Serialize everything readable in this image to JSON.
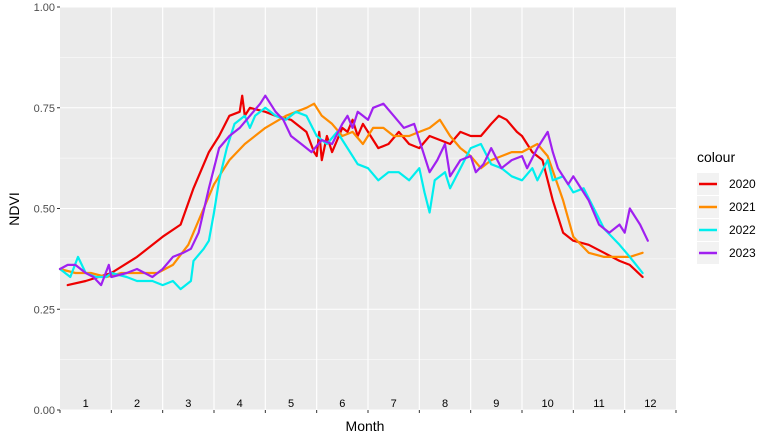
{
  "chart_data": {
    "type": "line",
    "title": "",
    "xlabel": "Month",
    "ylabel": "NDVI",
    "xlim": [
      1,
      13
    ],
    "ylim": [
      0,
      1
    ],
    "y_ticks": [
      "0.00",
      "0.25",
      "0.50",
      "0.75",
      "1.00"
    ],
    "x_tick_labels": [
      "1",
      "2",
      "3",
      "4",
      "5",
      "6",
      "7",
      "8",
      "9",
      "10",
      "11",
      "12"
    ],
    "grid": true,
    "legend_title": "colour",
    "legend_position": "right",
    "series": [
      {
        "name": "2020",
        "color": "#EE0000",
        "points": [
          [
            1.15,
            0.31
          ],
          [
            1.5,
            0.32
          ],
          [
            2.0,
            0.34
          ],
          [
            2.5,
            0.38
          ],
          [
            3.0,
            0.43
          ],
          [
            3.35,
            0.46
          ],
          [
            3.6,
            0.55
          ],
          [
            3.9,
            0.64
          ],
          [
            4.1,
            0.68
          ],
          [
            4.3,
            0.73
          ],
          [
            4.5,
            0.74
          ],
          [
            4.55,
            0.78
          ],
          [
            4.6,
            0.73
          ],
          [
            4.7,
            0.75
          ],
          [
            5.0,
            0.74
          ],
          [
            5.2,
            0.73
          ],
          [
            5.5,
            0.72
          ],
          [
            5.8,
            0.69
          ],
          [
            5.95,
            0.64
          ],
          [
            6.0,
            0.63
          ],
          [
            6.05,
            0.69
          ],
          [
            6.1,
            0.62
          ],
          [
            6.2,
            0.68
          ],
          [
            6.3,
            0.64
          ],
          [
            6.4,
            0.67
          ],
          [
            6.5,
            0.7
          ],
          [
            6.6,
            0.69
          ],
          [
            6.7,
            0.72
          ],
          [
            6.8,
            0.68
          ],
          [
            6.9,
            0.71
          ],
          [
            7.0,
            0.69
          ],
          [
            7.2,
            0.65
          ],
          [
            7.4,
            0.66
          ],
          [
            7.6,
            0.69
          ],
          [
            7.8,
            0.66
          ],
          [
            8.0,
            0.65
          ],
          [
            8.2,
            0.68
          ],
          [
            8.4,
            0.67
          ],
          [
            8.6,
            0.66
          ],
          [
            8.8,
            0.69
          ],
          [
            9.0,
            0.68
          ],
          [
            9.2,
            0.68
          ],
          [
            9.4,
            0.71
          ],
          [
            9.55,
            0.73
          ],
          [
            9.7,
            0.72
          ],
          [
            9.9,
            0.69
          ],
          [
            10.0,
            0.68
          ],
          [
            10.2,
            0.64
          ],
          [
            10.4,
            0.62
          ],
          [
            10.6,
            0.52
          ],
          [
            10.8,
            0.44
          ],
          [
            11.0,
            0.42
          ],
          [
            11.3,
            0.41
          ],
          [
            11.6,
            0.39
          ],
          [
            11.9,
            0.37
          ],
          [
            12.1,
            0.36
          ],
          [
            12.35,
            0.33
          ]
        ]
      },
      {
        "name": "2021",
        "color": "#FF8C00",
        "points": [
          [
            1.0,
            0.35
          ],
          [
            1.3,
            0.34
          ],
          [
            1.6,
            0.34
          ],
          [
            1.9,
            0.33
          ],
          [
            2.2,
            0.34
          ],
          [
            2.6,
            0.34
          ],
          [
            2.9,
            0.34
          ],
          [
            3.2,
            0.36
          ],
          [
            3.5,
            0.41
          ],
          [
            3.8,
            0.5
          ],
          [
            4.0,
            0.56
          ],
          [
            4.3,
            0.62
          ],
          [
            4.6,
            0.66
          ],
          [
            5.0,
            0.7
          ],
          [
            5.4,
            0.73
          ],
          [
            5.8,
            0.75
          ],
          [
            5.95,
            0.76
          ],
          [
            6.1,
            0.73
          ],
          [
            6.3,
            0.71
          ],
          [
            6.5,
            0.68
          ],
          [
            6.7,
            0.69
          ],
          [
            6.9,
            0.66
          ],
          [
            7.1,
            0.7
          ],
          [
            7.3,
            0.7
          ],
          [
            7.5,
            0.68
          ],
          [
            7.8,
            0.68
          ],
          [
            8.0,
            0.69
          ],
          [
            8.2,
            0.7
          ],
          [
            8.4,
            0.72
          ],
          [
            8.6,
            0.68
          ],
          [
            8.8,
            0.65
          ],
          [
            9.0,
            0.63
          ],
          [
            9.2,
            0.6
          ],
          [
            9.4,
            0.62
          ],
          [
            9.6,
            0.63
          ],
          [
            9.8,
            0.64
          ],
          [
            10.0,
            0.64
          ],
          [
            10.3,
            0.66
          ],
          [
            10.5,
            0.63
          ],
          [
            10.8,
            0.52
          ],
          [
            11.0,
            0.43
          ],
          [
            11.3,
            0.39
          ],
          [
            11.6,
            0.38
          ],
          [
            11.9,
            0.38
          ],
          [
            12.1,
            0.38
          ],
          [
            12.35,
            0.39
          ]
        ]
      },
      {
        "name": "2022",
        "color": "#00EEEE",
        "points": [
          [
            1.0,
            0.35
          ],
          [
            1.2,
            0.33
          ],
          [
            1.35,
            0.38
          ],
          [
            1.5,
            0.34
          ],
          [
            1.7,
            0.33
          ],
          [
            1.9,
            0.33
          ],
          [
            2.0,
            0.34
          ],
          [
            2.3,
            0.33
          ],
          [
            2.5,
            0.32
          ],
          [
            2.8,
            0.32
          ],
          [
            3.0,
            0.31
          ],
          [
            3.2,
            0.32
          ],
          [
            3.35,
            0.3
          ],
          [
            3.55,
            0.32
          ],
          [
            3.6,
            0.37
          ],
          [
            3.8,
            0.4
          ],
          [
            3.9,
            0.42
          ],
          [
            4.0,
            0.49
          ],
          [
            4.1,
            0.57
          ],
          [
            4.25,
            0.65
          ],
          [
            4.4,
            0.71
          ],
          [
            4.6,
            0.73
          ],
          [
            4.7,
            0.7
          ],
          [
            4.8,
            0.73
          ],
          [
            5.0,
            0.75
          ],
          [
            5.2,
            0.73
          ],
          [
            5.4,
            0.72
          ],
          [
            5.6,
            0.74
          ],
          [
            5.8,
            0.73
          ],
          [
            6.0,
            0.68
          ],
          [
            6.2,
            0.66
          ],
          [
            6.4,
            0.69
          ],
          [
            6.6,
            0.65
          ],
          [
            6.8,
            0.61
          ],
          [
            7.0,
            0.6
          ],
          [
            7.2,
            0.57
          ],
          [
            7.4,
            0.59
          ],
          [
            7.6,
            0.59
          ],
          [
            7.8,
            0.57
          ],
          [
            8.0,
            0.6
          ],
          [
            8.1,
            0.54
          ],
          [
            8.2,
            0.49
          ],
          [
            8.3,
            0.57
          ],
          [
            8.5,
            0.59
          ],
          [
            8.6,
            0.55
          ],
          [
            8.8,
            0.6
          ],
          [
            9.0,
            0.65
          ],
          [
            9.2,
            0.66
          ],
          [
            9.4,
            0.61
          ],
          [
            9.6,
            0.6
          ],
          [
            9.8,
            0.58
          ],
          [
            10.0,
            0.57
          ],
          [
            10.2,
            0.6
          ],
          [
            10.3,
            0.57
          ],
          [
            10.5,
            0.62
          ],
          [
            10.6,
            0.57
          ],
          [
            10.8,
            0.58
          ],
          [
            11.0,
            0.54
          ],
          [
            11.2,
            0.55
          ],
          [
            11.4,
            0.5
          ],
          [
            11.6,
            0.45
          ],
          [
            11.9,
            0.41
          ],
          [
            12.1,
            0.38
          ],
          [
            12.35,
            0.34
          ]
        ]
      },
      {
        "name": "2023",
        "color": "#A020F0",
        "points": [
          [
            1.0,
            0.35
          ],
          [
            1.15,
            0.36
          ],
          [
            1.3,
            0.36
          ],
          [
            1.5,
            0.34
          ],
          [
            1.65,
            0.33
          ],
          [
            1.8,
            0.31
          ],
          [
            1.95,
            0.36
          ],
          [
            2.0,
            0.33
          ],
          [
            2.3,
            0.34
          ],
          [
            2.5,
            0.35
          ],
          [
            2.8,
            0.33
          ],
          [
            3.0,
            0.35
          ],
          [
            3.2,
            0.38
          ],
          [
            3.4,
            0.39
          ],
          [
            3.55,
            0.4
          ],
          [
            3.7,
            0.44
          ],
          [
            3.9,
            0.55
          ],
          [
            4.1,
            0.65
          ],
          [
            4.3,
            0.68
          ],
          [
            4.5,
            0.7
          ],
          [
            4.7,
            0.73
          ],
          [
            4.9,
            0.76
          ],
          [
            5.0,
            0.78
          ],
          [
            5.2,
            0.74
          ],
          [
            5.35,
            0.72
          ],
          [
            5.5,
            0.68
          ],
          [
            5.7,
            0.66
          ],
          [
            5.9,
            0.64
          ],
          [
            6.1,
            0.67
          ],
          [
            6.3,
            0.66
          ],
          [
            6.5,
            0.71
          ],
          [
            6.6,
            0.73
          ],
          [
            6.7,
            0.7
          ],
          [
            6.8,
            0.74
          ],
          [
            6.9,
            0.73
          ],
          [
            7.0,
            0.72
          ],
          [
            7.1,
            0.75
          ],
          [
            7.3,
            0.76
          ],
          [
            7.5,
            0.73
          ],
          [
            7.7,
            0.7
          ],
          [
            7.9,
            0.71
          ],
          [
            8.05,
            0.65
          ],
          [
            8.2,
            0.59
          ],
          [
            8.35,
            0.62
          ],
          [
            8.5,
            0.66
          ],
          [
            8.6,
            0.58
          ],
          [
            8.8,
            0.62
          ],
          [
            9.0,
            0.63
          ],
          [
            9.1,
            0.59
          ],
          [
            9.25,
            0.61
          ],
          [
            9.4,
            0.65
          ],
          [
            9.6,
            0.6
          ],
          [
            9.8,
            0.62
          ],
          [
            10.0,
            0.63
          ],
          [
            10.1,
            0.6
          ],
          [
            10.3,
            0.65
          ],
          [
            10.5,
            0.69
          ],
          [
            10.6,
            0.64
          ],
          [
            10.7,
            0.6
          ],
          [
            10.9,
            0.56
          ],
          [
            11.0,
            0.58
          ],
          [
            11.2,
            0.54
          ],
          [
            11.3,
            0.52
          ],
          [
            11.5,
            0.46
          ],
          [
            11.7,
            0.44
          ],
          [
            11.9,
            0.46
          ],
          [
            12.0,
            0.44
          ],
          [
            12.1,
            0.5
          ],
          [
            12.3,
            0.46
          ],
          [
            12.45,
            0.42
          ]
        ]
      }
    ]
  }
}
